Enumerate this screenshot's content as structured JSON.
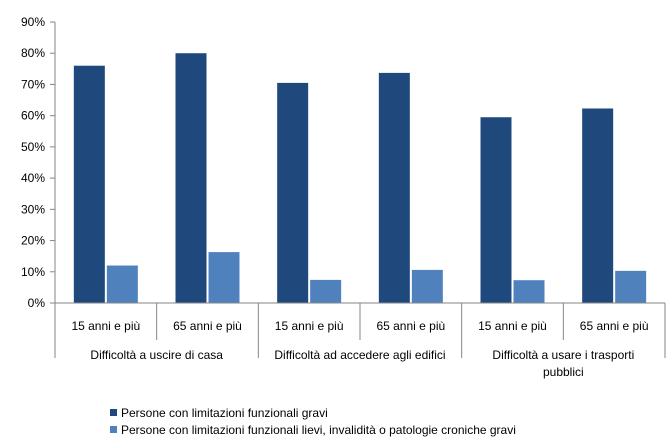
{
  "chart_data": {
    "type": "bar",
    "groups": [
      {
        "label": "Difficoltà a uscire di casa",
        "label_lines": [
          "Difficoltà a uscire di casa"
        ],
        "categories": [
          "15 anni e più",
          "65 anni e più"
        ]
      },
      {
        "label": "Difficoltà ad accedere agli edifici",
        "label_lines": [
          "Difficoltà ad accedere agli edifici"
        ],
        "categories": [
          "15 anni e più",
          "65 anni e più"
        ]
      },
      {
        "label": "Difficoltà a usare i trasporti pubblici",
        "label_lines": [
          "Difficoltà a usare i trasporti",
          "pubblici"
        ],
        "categories": [
          "15 anni e più",
          "65 anni e più"
        ]
      }
    ],
    "series": [
      {
        "name": "Persone con limitazioni funzionali gravi",
        "color": "#1F497D",
        "values": [
          76,
          80,
          70.5,
          73.7,
          59.5,
          62.3
        ]
      },
      {
        "name": "Persone con limitazioni funzionali lievi, invalidità o patologie croniche gravi",
        "color": "#4F81BD",
        "values": [
          12,
          16.3,
          7.4,
          10.6,
          7.3,
          10.3
        ]
      }
    ],
    "y_ticks": [
      "0%",
      "10%",
      "20%",
      "30%",
      "40%",
      "50%",
      "60%",
      "70%",
      "80%",
      "90%"
    ],
    "ylim": [
      0,
      90
    ],
    "grid": false,
    "legend_position": "bottom-left"
  }
}
